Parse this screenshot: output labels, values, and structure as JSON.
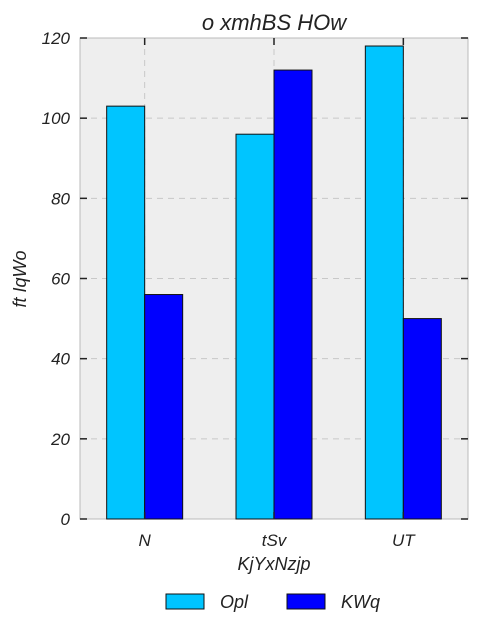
{
  "chart_data": {
    "type": "bar",
    "title": "o xmhBS HOw",
    "xlabel": "KjYxNzjp",
    "ylabel": "ft IqWo",
    "categories": [
      "N",
      "tSv",
      "UT"
    ],
    "series": [
      {
        "name": "Opl",
        "values": [
          103,
          96,
          118
        ],
        "color": "#00c5ff"
      },
      {
        "name": "KWq",
        "values": [
          56,
          112,
          50
        ],
        "color": "#0000ff"
      }
    ],
    "ylim": [
      0,
      120
    ],
    "yticks": [
      0,
      20,
      40,
      60,
      80,
      100,
      120
    ],
    "grid": true,
    "legend_position": "bottom-center",
    "background_color": "#eeeeee"
  }
}
